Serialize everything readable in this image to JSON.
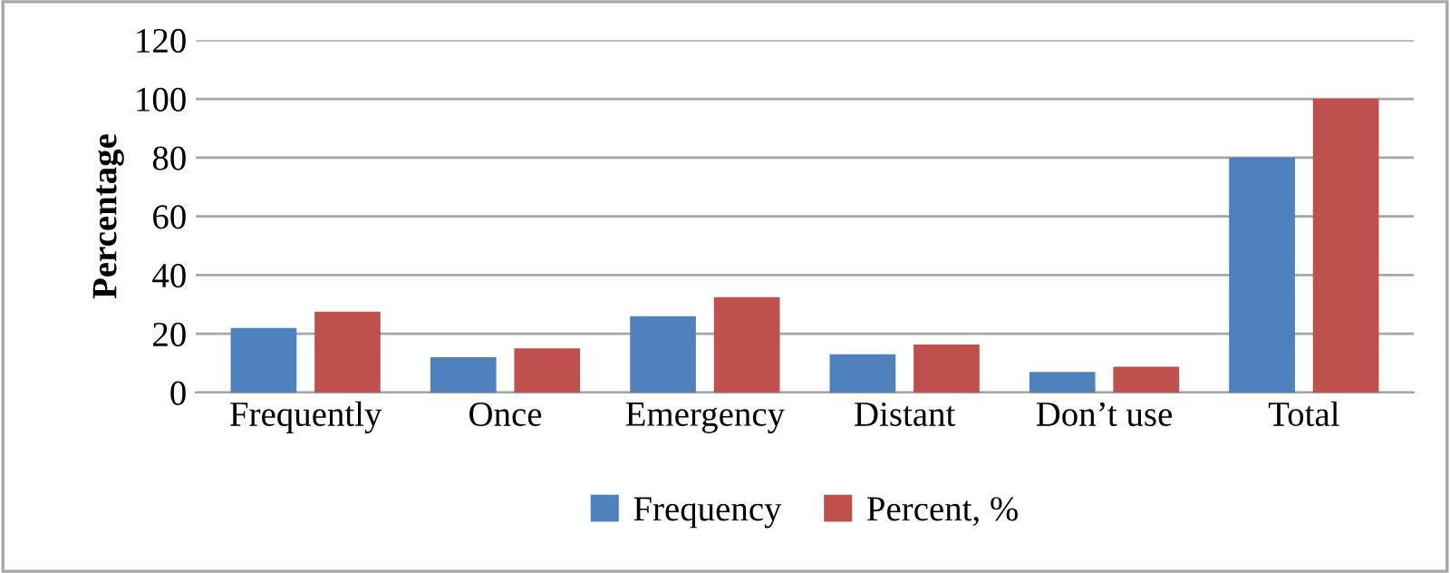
{
  "chart_data": {
    "type": "bar",
    "ylabel": "Percentage",
    "categories": [
      "Frequently",
      "Once",
      "Emergency",
      "Distant",
      "Don’t use",
      "Total"
    ],
    "series": [
      {
        "name": "Frequency",
        "color": "#4f81bd",
        "values": [
          22,
          12,
          26,
          13,
          7,
          80
        ]
      },
      {
        "name": "Percent, %",
        "color": "#c0504d",
        "values": [
          27.5,
          15,
          32.5,
          16.3,
          8.8,
          100
        ]
      }
    ],
    "ylim": [
      0,
      120
    ],
    "yticks": [
      0,
      20,
      40,
      60,
      80,
      100,
      120
    ],
    "grid": "y",
    "legend": "bottom"
  }
}
